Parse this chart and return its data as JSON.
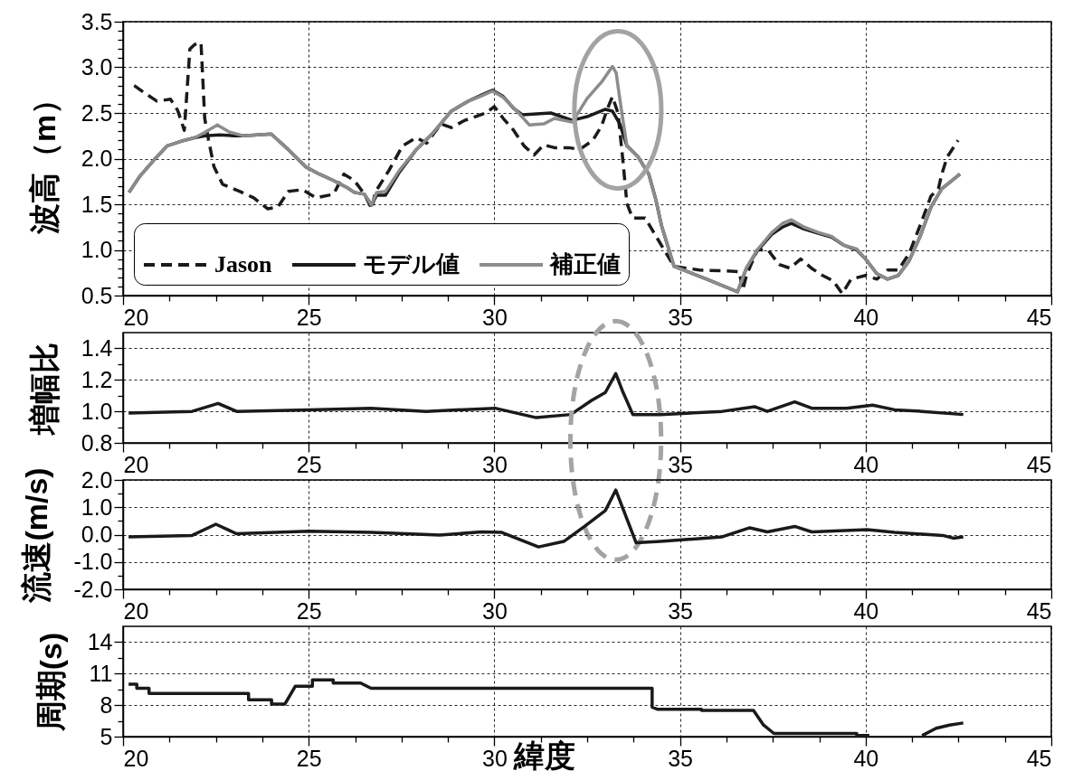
{
  "chart_data": [
    {
      "type": "line",
      "ylabel": "波高（m）",
      "xlim": [
        20,
        45
      ],
      "xticks": [
        20,
        {
          "value": 21.25,
          "label": null
        },
        {
          "value": 22.5,
          "label": null
        },
        {
          "value": 23.75,
          "label": null
        },
        25,
        {
          "value": 26.25,
          "label": null
        },
        {
          "value": 27.5,
          "label": null
        },
        {
          "value": 28.75,
          "label": null
        },
        30,
        {
          "value": 31.25,
          "label": null
        },
        {
          "value": 32.5,
          "label": null
        },
        {
          "value": 33.75,
          "label": null
        },
        35,
        {
          "value": 36.25,
          "label": null
        },
        {
          "value": 37.5,
          "label": null
        },
        {
          "value": 38.75,
          "label": null
        },
        40,
        {
          "value": 41.25,
          "label": null
        },
        {
          "value": 42.5,
          "label": null
        },
        {
          "value": 43.75,
          "label": null
        },
        45
      ],
      "ylim": [
        0.5,
        3.5
      ],
      "yticks": [
        0.5,
        {
          "value": 0.6,
          "label": null
        },
        {
          "value": 0.7,
          "label": null
        },
        {
          "value": 0.8,
          "label": null
        },
        {
          "value": 0.9,
          "label": null
        },
        {
          "value": 1,
          "label": "1.0"
        },
        {
          "value": 1.1,
          "label": null
        },
        {
          "value": 1.2,
          "label": null
        },
        {
          "value": 1.3,
          "label": null
        },
        {
          "value": 1.4,
          "label": null
        },
        1.5,
        {
          "value": 1.6,
          "label": null
        },
        {
          "value": 1.7,
          "label": null
        },
        {
          "value": 1.8,
          "label": null
        },
        {
          "value": 1.9,
          "label": null
        },
        {
          "value": 2,
          "label": "2.0"
        },
        {
          "value": 2.1,
          "label": null
        },
        {
          "value": 2.2,
          "label": null
        },
        {
          "value": 2.3,
          "label": null
        },
        {
          "value": 2.4,
          "label": null
        },
        2.5,
        {
          "value": 2.6,
          "label": null
        },
        {
          "value": 2.7,
          "label": null
        },
        {
          "value": 2.8,
          "label": null
        },
        {
          "value": 2.9,
          "label": null
        },
        {
          "value": 3,
          "label": "3.0"
        },
        {
          "value": 3.1,
          "label": null
        },
        {
          "value": 3.2,
          "label": null
        },
        {
          "value": 3.3,
          "label": null
        },
        {
          "value": 3.4,
          "label": null
        },
        3.5
      ],
      "grid": true,
      "legend": "bottom left",
      "series": [
        {
          "name": "Jason",
          "color": "#1a1a1a",
          "line_style": "dashed",
          "x": [
            20.3,
            20.54,
            20.91,
            21.28,
            21.47,
            21.65,
            21.8,
            21.93,
            22.1,
            22.2,
            22.3,
            22.45,
            22.68,
            23.15,
            23.52,
            23.9,
            24.17,
            24.45,
            24.83,
            25.2,
            25.67,
            25.95,
            26.23,
            26.5,
            26.7,
            26.79,
            27.16,
            27.53,
            27.9,
            28.18,
            28.56,
            28.84,
            29.21,
            29.49,
            29.77,
            30.0,
            30.24,
            30.52,
            30.8,
            31.07,
            31.33,
            31.62,
            32.01,
            32.3,
            32.65,
            32.89,
            33.04,
            33.18,
            33.33,
            33.47,
            33.57,
            33.72,
            34.06,
            34.84,
            35.52,
            36.21,
            36.6,
            36.69,
            36.79,
            37.08,
            37.37,
            37.67,
            37.96,
            38.25,
            38.54,
            38.84,
            39.13,
            39.37,
            39.61,
            40.0,
            40.3,
            40.59,
            40.88,
            41.17,
            41.47,
            41.76,
            41.96,
            42.05,
            42.2,
            42.49
          ],
          "values": [
            2.8,
            2.73,
            2.63,
            2.65,
            2.53,
            2.31,
            3.2,
            3.25,
            3.27,
            2.44,
            2.21,
            1.91,
            1.72,
            1.64,
            1.57,
            1.45,
            1.47,
            1.64,
            1.66,
            1.57,
            1.61,
            1.83,
            1.76,
            1.61,
            1.45,
            1.63,
            1.87,
            2.14,
            2.23,
            2.17,
            2.38,
            2.34,
            2.42,
            2.46,
            2.5,
            2.57,
            2.44,
            2.31,
            2.14,
            2.04,
            2.15,
            2.12,
            2.12,
            2.1,
            2.2,
            2.36,
            2.54,
            2.68,
            2.5,
            1.95,
            1.51,
            1.35,
            1.35,
            0.82,
            0.78,
            0.77,
            0.76,
            0.56,
            0.72,
            1.0,
            1.0,
            0.84,
            0.8,
            0.9,
            0.8,
            0.72,
            0.66,
            0.52,
            0.68,
            0.72,
            0.68,
            0.78,
            0.78,
            0.96,
            1.27,
            1.59,
            1.67,
            1.83,
            2.02,
            2.2
          ]
        },
        {
          "name": "モデル値",
          "color": "#1a1a1a",
          "line_style": "solid",
          "x": [
            20.16,
            20.44,
            20.82,
            21.19,
            21.56,
            21.94,
            22.21,
            22.6,
            23.0,
            23.24,
            23.99,
            24.45,
            24.92,
            25.29,
            25.67,
            26.04,
            26.23,
            26.5,
            26.69,
            26.83,
            27.07,
            27.44,
            27.9,
            28.37,
            28.84,
            29.3,
            29.67,
            29.95,
            30.24,
            30.52,
            30.75,
            31.14,
            31.52,
            32.1,
            32.5,
            32.99,
            33.18,
            33.38,
            33.57,
            33.87,
            34.16,
            34.35,
            34.5,
            34.84,
            35.72,
            36.55,
            36.79,
            37.08,
            37.47,
            37.76,
            38.0,
            38.34,
            38.74,
            39.08,
            39.42,
            39.76,
            40.0,
            40.3,
            40.59,
            40.88,
            41.17,
            41.47,
            41.76,
            42.05,
            42.54
          ],
          "values": [
            1.63,
            1.8,
            1.98,
            2.14,
            2.19,
            2.23,
            2.25,
            2.26,
            2.25,
            2.25,
            2.27,
            2.1,
            1.91,
            1.83,
            1.76,
            1.68,
            1.63,
            1.61,
            1.49,
            1.6,
            1.6,
            1.85,
            2.1,
            2.29,
            2.52,
            2.63,
            2.7,
            2.75,
            2.68,
            2.55,
            2.48,
            2.49,
            2.5,
            2.42,
            2.46,
            2.54,
            2.52,
            2.38,
            2.14,
            2.02,
            1.83,
            1.55,
            1.27,
            0.82,
            0.68,
            0.54,
            0.8,
            0.99,
            1.17,
            1.25,
            1.29,
            1.23,
            1.18,
            1.14,
            1.05,
            1.0,
            0.9,
            0.74,
            0.68,
            0.72,
            0.88,
            1.15,
            1.47,
            1.67,
            1.83
          ]
        },
        {
          "name": "補正値",
          "color": "#8c8c8c",
          "line_style": "solid",
          "x": [
            20.16,
            20.44,
            20.82,
            21.19,
            21.56,
            21.94,
            22.21,
            22.54,
            22.87,
            23.24,
            23.99,
            24.45,
            24.92,
            25.29,
            25.67,
            26.04,
            26.23,
            26.5,
            26.69,
            26.83,
            27.07,
            27.44,
            27.9,
            28.37,
            28.84,
            29.3,
            29.67,
            29.95,
            30.24,
            30.61,
            30.94,
            31.33,
            31.62,
            32.1,
            32.5,
            32.89,
            33.18,
            33.28,
            33.42,
            33.57,
            33.87,
            34.16,
            34.35,
            34.5,
            34.84,
            35.72,
            36.55,
            36.79,
            37.08,
            37.47,
            37.76,
            38.0,
            38.34,
            38.74,
            39.08,
            39.42,
            39.76,
            40.0,
            40.3,
            40.59,
            40.88,
            41.17,
            41.47,
            41.76,
            42.05,
            42.54
          ],
          "values": [
            1.63,
            1.8,
            1.98,
            2.14,
            2.19,
            2.23,
            2.29,
            2.37,
            2.29,
            2.25,
            2.27,
            2.1,
            1.91,
            1.83,
            1.76,
            1.68,
            1.63,
            1.61,
            1.49,
            1.63,
            1.64,
            1.87,
            2.1,
            2.29,
            2.52,
            2.63,
            2.69,
            2.74,
            2.67,
            2.52,
            2.37,
            2.38,
            2.44,
            2.4,
            2.66,
            2.84,
            3.01,
            2.94,
            2.54,
            2.14,
            2.02,
            1.83,
            1.55,
            1.27,
            0.82,
            0.68,
            0.54,
            0.8,
            1.0,
            1.19,
            1.29,
            1.33,
            1.25,
            1.19,
            1.15,
            1.05,
            1.01,
            0.9,
            0.74,
            0.68,
            0.72,
            0.88,
            1.15,
            1.47,
            1.67,
            1.83
          ]
        }
      ]
    },
    {
      "type": "line",
      "ylabel": "増幅比",
      "xlim": [
        20,
        45
      ],
      "xticks": [
        20,
        {
          "value": 21.25,
          "label": null
        },
        {
          "value": 22.5,
          "label": null
        },
        {
          "value": 23.75,
          "label": null
        },
        25,
        {
          "value": 26.25,
          "label": null
        },
        {
          "value": 27.5,
          "label": null
        },
        {
          "value": 28.75,
          "label": null
        },
        30,
        {
          "value": 31.25,
          "label": null
        },
        {
          "value": 32.5,
          "label": null
        },
        {
          "value": 33.75,
          "label": null
        },
        35,
        {
          "value": 36.25,
          "label": null
        },
        {
          "value": 37.5,
          "label": null
        },
        {
          "value": 38.75,
          "label": null
        },
        40,
        {
          "value": 41.25,
          "label": null
        },
        {
          "value": 42.5,
          "label": null
        },
        {
          "value": 43.75,
          "label": null
        },
        45
      ],
      "ylim": [
        0.8,
        1.5
      ],
      "yticks": [
        0.8,
        {
          "value": 0.9,
          "label": null
        },
        {
          "value": 1,
          "label": "1.0"
        },
        {
          "value": 1.1,
          "label": null
        },
        1.2,
        {
          "value": 1.3,
          "label": null
        },
        1.4
      ],
      "grid": true,
      "series": [
        {
          "color": "#1a1a1a",
          "x": [
            20.15,
            21.86,
            22.56,
            23.06,
            25.0,
            26.68,
            28.16,
            30.02,
            31.13,
            32.06,
            32.62,
            32.99,
            33.27,
            33.45,
            33.73,
            34.47,
            36.14,
            37.01,
            37.35,
            38.09,
            38.55,
            39.48,
            40.19,
            40.78,
            41.52,
            42.63
          ],
          "values": [
            0.99,
            1.0,
            1.05,
            1.0,
            1.01,
            1.02,
            1.0,
            1.02,
            0.96,
            0.98,
            1.07,
            1.12,
            1.24,
            1.13,
            0.98,
            0.98,
            1.0,
            1.03,
            1.0,
            1.06,
            1.02,
            1.02,
            1.04,
            1.01,
            1.0,
            0.98
          ]
        }
      ]
    },
    {
      "type": "line",
      "ylabel": "流速(m/s)",
      "xlim": [
        20,
        45
      ],
      "xticks": [
        20,
        {
          "value": 21.25,
          "label": null
        },
        {
          "value": 22.5,
          "label": null
        },
        {
          "value": 23.75,
          "label": null
        },
        25,
        {
          "value": 26.25,
          "label": null
        },
        {
          "value": 27.5,
          "label": null
        },
        {
          "value": 28.75,
          "label": null
        },
        30,
        {
          "value": 31.25,
          "label": null
        },
        {
          "value": 32.5,
          "label": null
        },
        {
          "value": 33.75,
          "label": null
        },
        35,
        {
          "value": 36.25,
          "label": null
        },
        {
          "value": 37.5,
          "label": null
        },
        {
          "value": 38.75,
          "label": null
        },
        40,
        {
          "value": 41.25,
          "label": null
        },
        {
          "value": 42.5,
          "label": null
        },
        {
          "value": 43.75,
          "label": null
        },
        45
      ],
      "ylim": [
        -2,
        2
      ],
      "yticks": [
        {
          "value": -2,
          "label": "-2.0"
        },
        {
          "value": -1.5,
          "label": null
        },
        {
          "value": -1,
          "label": "-1.0"
        },
        {
          "value": -0.5,
          "label": null
        },
        {
          "value": 0,
          "label": "0.0"
        },
        {
          "value": 0.5,
          "label": null
        },
        {
          "value": 1,
          "label": "1.0"
        },
        {
          "value": 1.5,
          "label": null
        },
        {
          "value": 2,
          "label": "2.0"
        }
      ],
      "grid": true,
      "series": [
        {
          "color": "#1a1a1a",
          "x": [
            20.15,
            21.86,
            22.5,
            23.06,
            25.0,
            26.68,
            28.53,
            29.65,
            30.2,
            31.19,
            31.87,
            32.43,
            32.99,
            33.27,
            33.54,
            33.82,
            34.47,
            36.14,
            36.88,
            37.35,
            38.09,
            38.55,
            40.04,
            40.78,
            42.08,
            42.36,
            42.63
          ],
          "values": [
            -0.08,
            -0.03,
            0.38,
            0.03,
            0.12,
            0.08,
            -0.02,
            0.1,
            0.08,
            -0.45,
            -0.25,
            0.3,
            0.88,
            1.63,
            0.68,
            -0.3,
            -0.25,
            -0.08,
            0.25,
            0.1,
            0.3,
            0.1,
            0.18,
            0.08,
            -0.03,
            -0.13,
            -0.08
          ]
        }
      ]
    },
    {
      "type": "line",
      "ylabel": "周期(s)",
      "xlabel": "緯度",
      "xlim": [
        20,
        45
      ],
      "xticks": [
        20,
        {
          "value": 21.25,
          "label": null
        },
        {
          "value": 22.5,
          "label": null
        },
        {
          "value": 23.75,
          "label": null
        },
        25,
        {
          "value": 26.25,
          "label": null
        },
        {
          "value": 27.5,
          "label": null
        },
        {
          "value": 28.75,
          "label": null
        },
        30,
        {
          "value": 31.25,
          "label": null
        },
        {
          "value": 32.5,
          "label": null
        },
        {
          "value": 33.75,
          "label": null
        },
        35,
        {
          "value": 36.25,
          "label": null
        },
        {
          "value": 37.5,
          "label": null
        },
        {
          "value": 38.75,
          "label": null
        },
        40,
        {
          "value": 41.25,
          "label": null
        },
        {
          "value": 42.5,
          "label": null
        },
        {
          "value": 43.75,
          "label": null
        },
        45
      ],
      "ylim": [
        5,
        15.5
      ],
      "yticks": [
        5,
        {
          "value": 6.5,
          "label": null
        },
        8,
        {
          "value": 9.5,
          "label": null
        },
        11,
        {
          "value": 12.5,
          "label": null
        },
        14
      ],
      "grid": true,
      "series": [
        {
          "color": "#1a1a1a",
          "x": [
            20.15,
            20.37,
            20.37,
            20.7,
            20.7,
            23.38,
            23.38,
            24.0,
            24.0,
            24.36,
            24.64,
            25.1,
            25.1,
            25.66,
            25.66,
            26.4,
            26.68,
            34.25,
            34.25,
            34.4,
            35.58,
            35.58,
            36.98,
            37.25,
            37.53,
            39.76,
            39.76,
            40.1,
            40.5,
            41.52,
            41.9,
            42.26,
            42.63
          ],
          "values": [
            10,
            10,
            9.6,
            9.6,
            9.1,
            9.1,
            8.5,
            8.5,
            8.1,
            8.1,
            9.8,
            9.8,
            10.4,
            10.4,
            10.1,
            10.1,
            9.6,
            9.6,
            7.8,
            7.6,
            7.6,
            7.5,
            7.5,
            6.1,
            5.3,
            5.3,
            5.1,
            5.1,
            null,
            5.1,
            5.8,
            6.1,
            6.3
          ]
        }
      ]
    }
  ]
}
